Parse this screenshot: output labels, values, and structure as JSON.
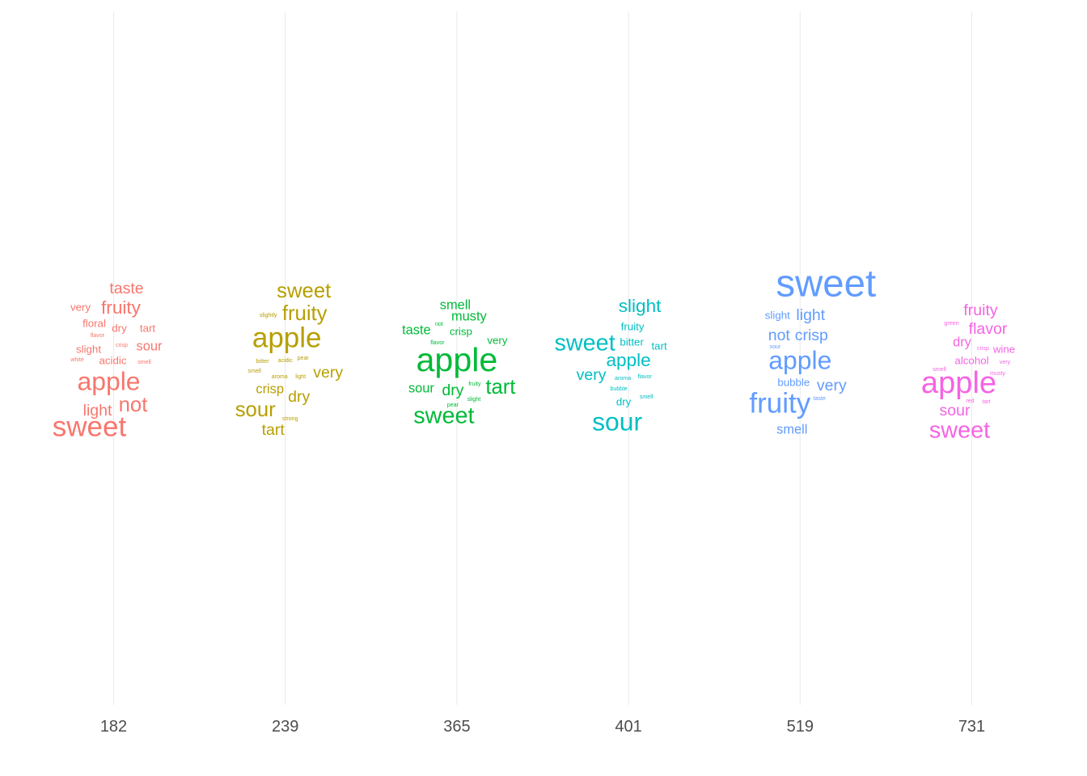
{
  "chart_data": {
    "type": "word cloud by category",
    "title": "",
    "xlabel": "",
    "ylabel": "",
    "grid": "vertical major gridlines at each category",
    "legend": "none",
    "categories": [
      "182",
      "239",
      "365",
      "401",
      "519",
      "731"
    ],
    "groups": [
      {
        "category": "182",
        "color": "#F8766D",
        "words": [
          {
            "text": "sweet",
            "weight": 10
          },
          {
            "text": "apple",
            "weight": 9
          },
          {
            "text": "not",
            "weight": 7
          },
          {
            "text": "fruity",
            "weight": 6
          },
          {
            "text": "taste",
            "weight": 5
          },
          {
            "text": "light",
            "weight": 5
          },
          {
            "text": "sour",
            "weight": 4
          },
          {
            "text": "floral",
            "weight": 3
          },
          {
            "text": "dry",
            "weight": 3
          },
          {
            "text": "tart",
            "weight": 3
          },
          {
            "text": "slight",
            "weight": 3
          },
          {
            "text": "acidic",
            "weight": 3
          },
          {
            "text": "very",
            "weight": 3
          },
          {
            "text": "flavor",
            "weight": 1
          },
          {
            "text": "crisp",
            "weight": 1
          },
          {
            "text": "white",
            "weight": 1
          },
          {
            "text": "smell",
            "weight": 1
          }
        ]
      },
      {
        "category": "239",
        "color": "#B79F00",
        "words": [
          {
            "text": "apple",
            "weight": 10
          },
          {
            "text": "sweet",
            "weight": 7
          },
          {
            "text": "fruity",
            "weight": 7
          },
          {
            "text": "sour",
            "weight": 7
          },
          {
            "text": "dry",
            "weight": 5
          },
          {
            "text": "very",
            "weight": 5
          },
          {
            "text": "tart",
            "weight": 5
          },
          {
            "text": "crisp",
            "weight": 4
          },
          {
            "text": "slightly",
            "weight": 1
          },
          {
            "text": "bitter",
            "weight": 1
          },
          {
            "text": "acidic",
            "weight": 1
          },
          {
            "text": "pear",
            "weight": 1
          },
          {
            "text": "smell",
            "weight": 1
          },
          {
            "text": "aroma",
            "weight": 1
          },
          {
            "text": "light",
            "weight": 1
          },
          {
            "text": "strong",
            "weight": 1
          }
        ]
      },
      {
        "category": "365",
        "color": "#00BA38",
        "words": [
          {
            "text": "apple",
            "weight": 12
          },
          {
            "text": "sweet",
            "weight": 8
          },
          {
            "text": "tart",
            "weight": 7
          },
          {
            "text": "dry",
            "weight": 5
          },
          {
            "text": "musty",
            "weight": 4
          },
          {
            "text": "taste",
            "weight": 4
          },
          {
            "text": "smell",
            "weight": 4
          },
          {
            "text": "sour",
            "weight": 4
          },
          {
            "text": "crisp",
            "weight": 3
          },
          {
            "text": "very",
            "weight": 3
          },
          {
            "text": "not",
            "weight": 1
          },
          {
            "text": "flavor",
            "weight": 1
          },
          {
            "text": "fruity",
            "weight": 1
          },
          {
            "text": "slight",
            "weight": 1
          },
          {
            "text": "pear",
            "weight": 1
          }
        ]
      },
      {
        "category": "401",
        "color": "#00BFC4",
        "words": [
          {
            "text": "sour",
            "weight": 9
          },
          {
            "text": "sweet",
            "weight": 8
          },
          {
            "text": "apple",
            "weight": 6
          },
          {
            "text": "slight",
            "weight": 6
          },
          {
            "text": "very",
            "weight": 5
          },
          {
            "text": "bitter",
            "weight": 3
          },
          {
            "text": "fruity",
            "weight": 3
          },
          {
            "text": "tart",
            "weight": 3
          },
          {
            "text": "dry",
            "weight": 3
          },
          {
            "text": "aroma",
            "weight": 1
          },
          {
            "text": "flavor",
            "weight": 1
          },
          {
            "text": "bubble",
            "weight": 1
          },
          {
            "text": "smell",
            "weight": 1
          }
        ]
      },
      {
        "category": "519",
        "color": "#619CFF",
        "words": [
          {
            "text": "sweet",
            "weight": 14
          },
          {
            "text": "fruity",
            "weight": 10
          },
          {
            "text": "apple",
            "weight": 9
          },
          {
            "text": "light",
            "weight": 5
          },
          {
            "text": "crisp",
            "weight": 5
          },
          {
            "text": "not",
            "weight": 5
          },
          {
            "text": "very",
            "weight": 5
          },
          {
            "text": "smell",
            "weight": 4
          },
          {
            "text": "slight",
            "weight": 3
          },
          {
            "text": "bubble",
            "weight": 3
          },
          {
            "text": "sour",
            "weight": 1
          },
          {
            "text": "taste",
            "weight": 1
          }
        ]
      },
      {
        "category": "731",
        "color": "#F564E3",
        "words": [
          {
            "text": "apple",
            "weight": 11
          },
          {
            "text": "sweet",
            "weight": 8
          },
          {
            "text": "fruity",
            "weight": 5
          },
          {
            "text": "flavor",
            "weight": 5
          },
          {
            "text": "sour",
            "weight": 5
          },
          {
            "text": "dry",
            "weight": 4
          },
          {
            "text": "alcohol",
            "weight": 3
          },
          {
            "text": "wine",
            "weight": 3
          },
          {
            "text": "green",
            "weight": 1
          },
          {
            "text": "crisp",
            "weight": 1
          },
          {
            "text": "very",
            "weight": 1
          },
          {
            "text": "smell",
            "weight": 1
          },
          {
            "text": "musty",
            "weight": 1
          },
          {
            "text": "red",
            "weight": 1
          },
          {
            "text": "tart",
            "weight": 1
          }
        ]
      }
    ]
  }
}
